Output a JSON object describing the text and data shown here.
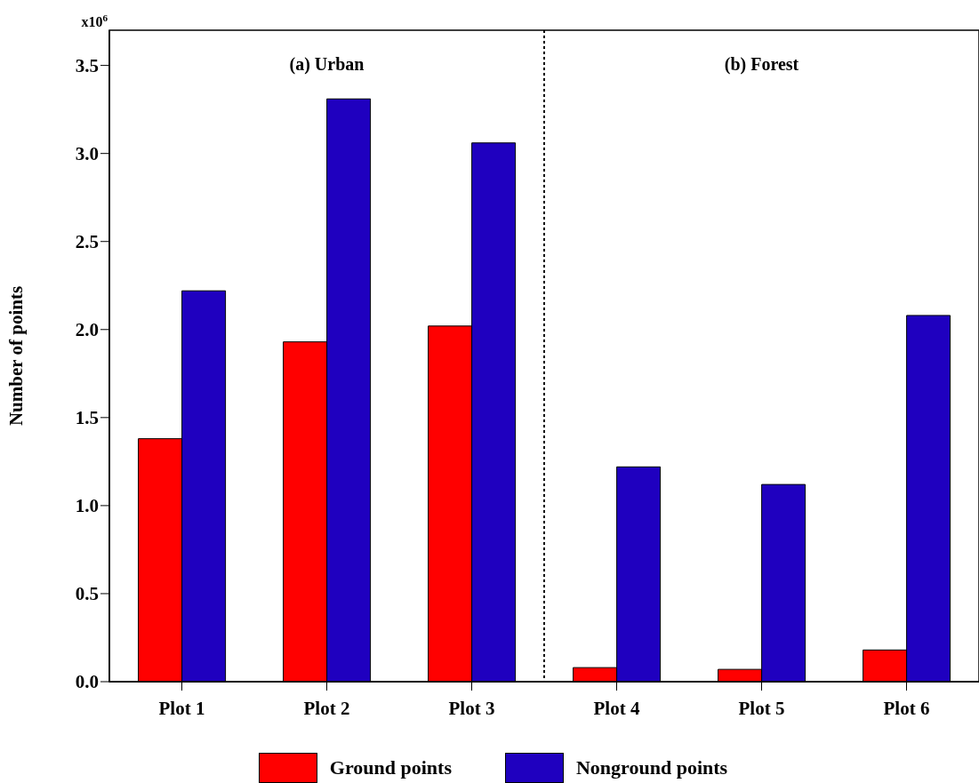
{
  "chart_data": {
    "type": "bar",
    "ylabel": "Number of points",
    "categories": [
      "Plot 1",
      "Plot 2",
      "Plot 3",
      "Plot 4",
      "Plot 5",
      "Plot 6"
    ],
    "series": [
      {
        "name": "Ground points",
        "color": "#ff0000",
        "values": [
          1.38,
          1.93,
          2.02,
          0.08,
          0.07,
          0.18
        ]
      },
      {
        "name": "Nonground points",
        "color": "#1f00bf",
        "values": [
          2.22,
          3.31,
          3.06,
          1.22,
          1.12,
          2.08
        ]
      }
    ],
    "ylim": [
      0,
      3.7
    ],
    "yticks": [
      {
        "value": 0,
        "label": "0.0"
      },
      0.5,
      {
        "value": 1,
        "label": "1.0"
      },
      1.5,
      {
        "value": 2,
        "label": "2.0"
      },
      2.5,
      {
        "value": 3,
        "label": "3.0"
      },
      3.5
    ],
    "annotations": [
      "(a) Urban",
      "(b) Forest",
      "x10$^{6}$"
    ],
    "legend": "bottom"
  }
}
